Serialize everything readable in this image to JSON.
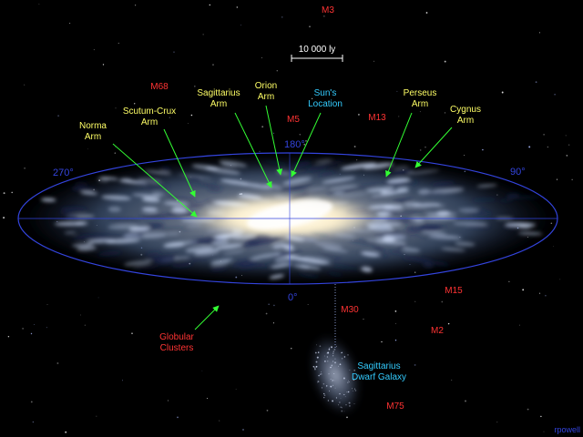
{
  "scale_bar": {
    "label": "10 000 ly"
  },
  "arms": {
    "norma": [
      "Norma",
      "Arm"
    ],
    "scutum_crux": [
      "Scutum-Crux",
      "Arm"
    ],
    "sagittarius": [
      "Sagittarius",
      "Arm"
    ],
    "orion": [
      "Orion",
      "Arm"
    ],
    "sun": [
      "Sun's",
      "Location"
    ],
    "perseus": [
      "Perseus",
      "Arm"
    ],
    "cygnus": [
      "Cygnus",
      "Arm"
    ]
  },
  "objects": {
    "m3": "M3",
    "m68": "M68",
    "m5": "M5",
    "m13": "M13",
    "m15": "M15",
    "m30": "M30",
    "m2": "M2",
    "m75": "M75"
  },
  "globular": [
    "Globular",
    "Clusters"
  ],
  "sag_dwarf": [
    "Sagittarius",
    "Dwarf Galaxy"
  ],
  "angles": {
    "a180": "180°",
    "a270": "270°",
    "a90": "90°",
    "a0": "0°"
  },
  "credit": "rpowell",
  "colors": {
    "arm_label": "#ffff66",
    "sun_label": "#33ccff",
    "object_label": "#ff3333",
    "pointer": "#33ff33",
    "grid": "#3344dd"
  }
}
